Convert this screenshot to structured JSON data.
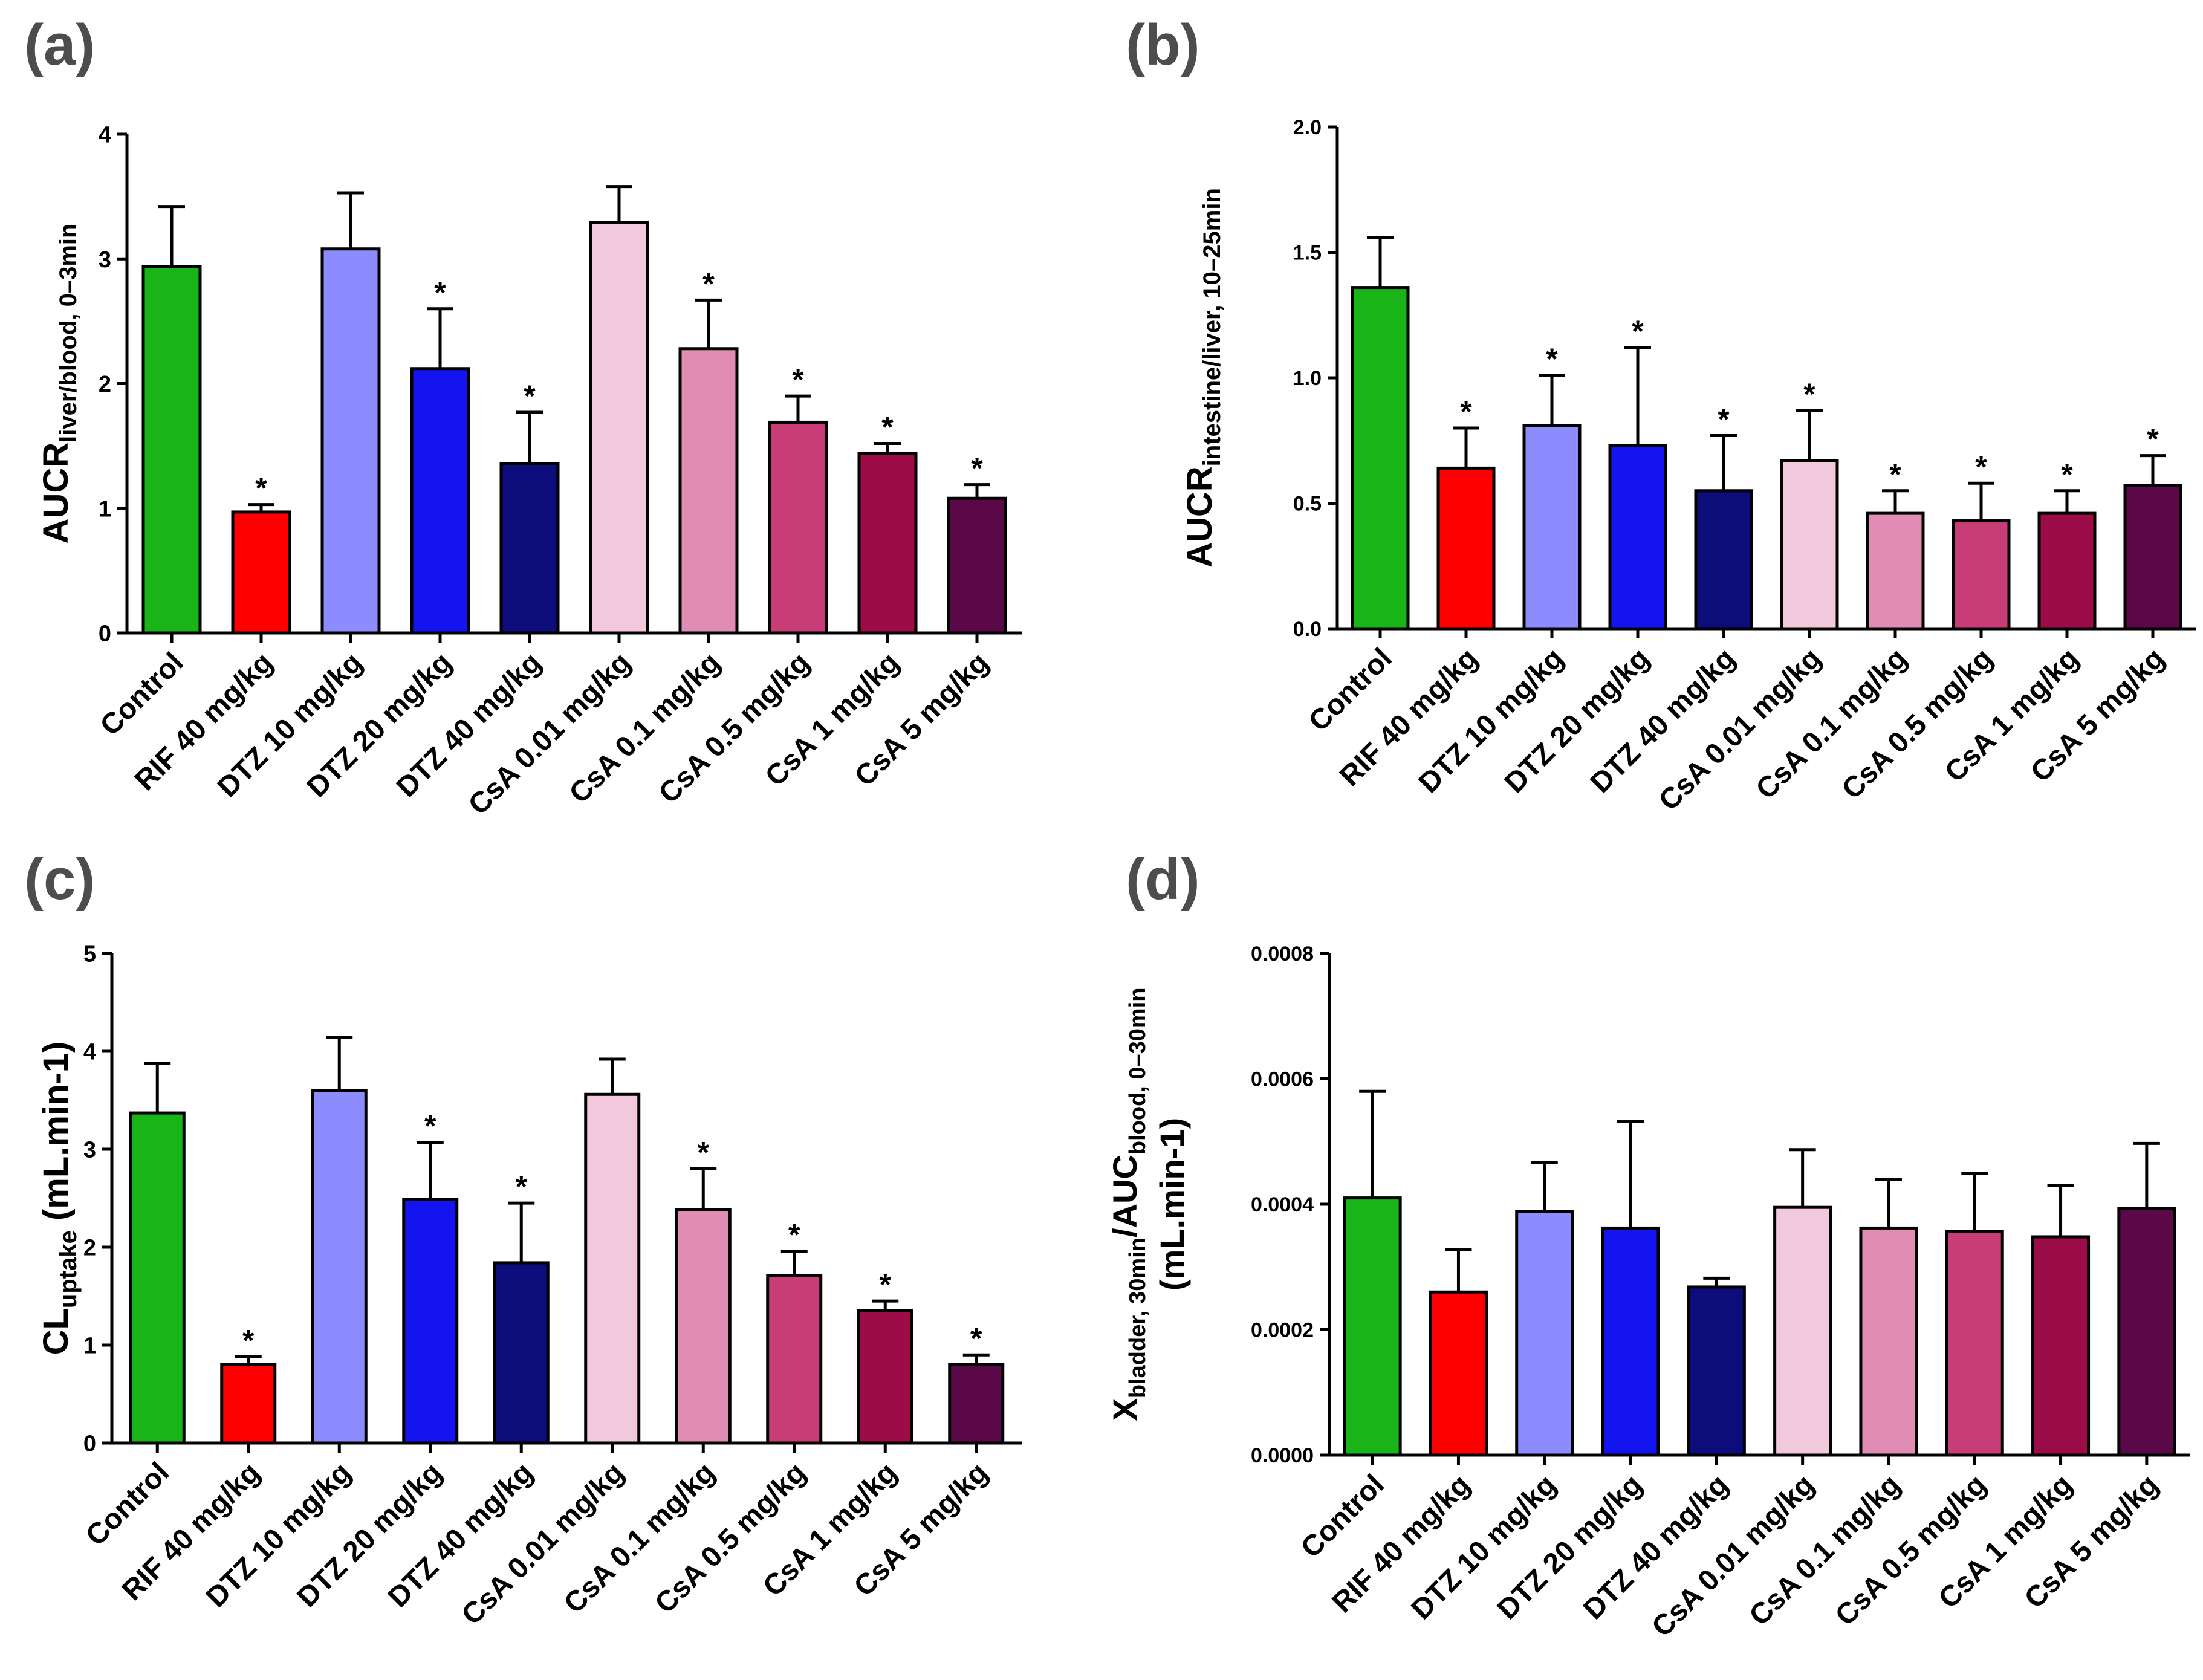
{
  "figure": {
    "categories": [
      "Control",
      "RIF 40 mg/kg",
      "DTZ 10 mg/kg",
      "DTZ 20 mg/kg",
      "DTZ 40 mg/kg",
      "CsA 0.01 mg/kg",
      "CsA 0.1 mg/kg",
      "CsA 0.5 mg/kg",
      "CsA 1 mg/kg",
      "CsA 5 mg/kg"
    ],
    "bar_colors": [
      "#18b418",
      "#ff0000",
      "#8c8cff",
      "#1414f0",
      "#0c0c7a",
      "#f2c8dc",
      "#e08cb4",
      "#c83c78",
      "#9c0c48",
      "#5a0848"
    ],
    "significance_marker": "*"
  },
  "panels": {
    "a": {
      "letter": "(a)"
    },
    "b": {
      "letter": "(b)"
    },
    "c": {
      "letter": "(c)"
    },
    "d": {
      "letter": "(d)"
    }
  },
  "chart_data": [
    {
      "id": "a",
      "type": "bar",
      "title": "",
      "ylabel": {
        "main": "AUCR",
        "sub": "liver/blood, 0–3min",
        "suffix": ""
      },
      "ylim": [
        0,
        4
      ],
      "yticks": [
        0,
        1,
        2,
        3,
        4
      ],
      "ytick_labels": [
        "0",
        "1",
        "2",
        "3",
        "4"
      ],
      "categories": [
        "Control",
        "RIF 40 mg/kg",
        "DTZ 10 mg/kg",
        "DTZ 20 mg/kg",
        "DTZ 40 mg/kg",
        "CsA 0.01 mg/kg",
        "CsA 0.1 mg/kg",
        "CsA 0.5 mg/kg",
        "CsA 1 mg/kg",
        "CsA 5 mg/kg"
      ],
      "values": [
        2.94,
        0.97,
        3.08,
        2.12,
        1.36,
        3.29,
        2.28,
        1.69,
        1.44,
        1.08
      ],
      "errors": [
        0.48,
        0.06,
        0.45,
        0.48,
        0.41,
        0.29,
        0.39,
        0.21,
        0.08,
        0.11
      ],
      "significant": [
        false,
        true,
        false,
        true,
        true,
        false,
        true,
        true,
        true,
        true
      ]
    },
    {
      "id": "b",
      "type": "bar",
      "title": "",
      "ylabel": {
        "main": "AUCR",
        "sub": "intestine/liver, 10–25min",
        "suffix": ""
      },
      "ylim": [
        0,
        2
      ],
      "yticks": [
        0,
        0.5,
        1,
        1.5,
        2
      ],
      "ytick_labels": [
        "0.0",
        "0.5",
        "1.0",
        "1.5",
        "2.0"
      ],
      "categories": [
        "Control",
        "RIF 40 mg/kg",
        "DTZ 10 mg/kg",
        "DTZ 20 mg/kg",
        "DTZ 40 mg/kg",
        "CsA 0.01 mg/kg",
        "CsA 0.1 mg/kg",
        "CsA 0.5 mg/kg",
        "CsA 1 mg/kg",
        "CsA 5 mg/kg"
      ],
      "values": [
        1.36,
        0.64,
        0.81,
        0.73,
        0.55,
        0.67,
        0.46,
        0.43,
        0.46,
        0.57
      ],
      "errors": [
        0.2,
        0.16,
        0.2,
        0.39,
        0.22,
        0.2,
        0.09,
        0.15,
        0.09,
        0.12
      ],
      "significant": [
        false,
        true,
        true,
        true,
        true,
        true,
        true,
        true,
        true,
        true
      ]
    },
    {
      "id": "c",
      "type": "bar",
      "title": "",
      "ylabel": {
        "main": "CL",
        "sub": "uptake",
        "suffix": " (mL.min-1)"
      },
      "ylim": [
        0,
        5
      ],
      "yticks": [
        0,
        1,
        2,
        3,
        4,
        5
      ],
      "ytick_labels": [
        "0",
        "1",
        "2",
        "3",
        "4",
        "5"
      ],
      "categories": [
        "Control",
        "RIF 40 mg/kg",
        "DTZ 10 mg/kg",
        "DTZ 20 mg/kg",
        "DTZ 40 mg/kg",
        "CsA 0.01 mg/kg",
        "CsA 0.1 mg/kg",
        "CsA 0.5 mg/kg",
        "CsA 1 mg/kg",
        "CsA 5 mg/kg"
      ],
      "values": [
        3.37,
        0.8,
        3.6,
        2.49,
        1.84,
        3.56,
        2.38,
        1.71,
        1.35,
        0.8
      ],
      "errors": [
        0.51,
        0.08,
        0.54,
        0.58,
        0.61,
        0.36,
        0.42,
        0.25,
        0.1,
        0.1
      ],
      "significant": [
        false,
        true,
        false,
        true,
        true,
        false,
        true,
        true,
        true,
        true
      ]
    },
    {
      "id": "d",
      "type": "bar",
      "title": "",
      "ylabel": {
        "main": "X",
        "sub": "bladder, 30min",
        "mid": "/AUC",
        "sub2": "blood, 0–30min",
        "line2": "(mL.min-1)"
      },
      "ylim": [
        0,
        0.0008
      ],
      "yticks": [
        0,
        0.0002,
        0.0004,
        0.0006,
        0.0008
      ],
      "ytick_labels": [
        "0.0000",
        "0.0002",
        "0.0004",
        "0.0006",
        "0.0008"
      ],
      "categories": [
        "Control",
        "RIF 40 mg/kg",
        "DTZ 10 mg/kg",
        "DTZ 20 mg/kg",
        "DTZ 40 mg/kg",
        "CsA 0.01 mg/kg",
        "CsA 0.1 mg/kg",
        "CsA 0.5 mg/kg",
        "CsA 1 mg/kg",
        "CsA 5 mg/kg"
      ],
      "values": [
        0.00041,
        0.00026,
        0.000388,
        0.000362,
        0.000268,
        0.000395,
        0.000362,
        0.000357,
        0.000348,
        0.000393
      ],
      "errors": [
        0.00017,
        6.8e-05,
        7.8e-05,
        0.00017,
        1.4e-05,
        9.2e-05,
        7.8e-05,
        9.2e-05,
        8.2e-05,
        0.000104
      ],
      "significant": [
        false,
        false,
        false,
        false,
        false,
        false,
        false,
        false,
        false,
        false
      ]
    }
  ]
}
